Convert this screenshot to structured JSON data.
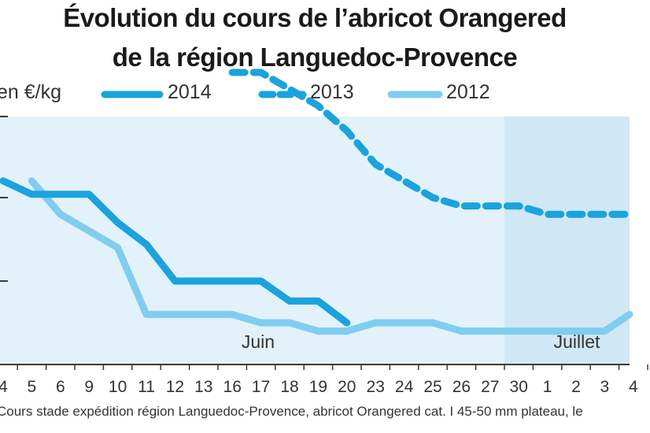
{
  "title_line1": "Évolution du cours de l’abricot Orangered",
  "title_line2": "de la région Languedoc-Provence",
  "caption": "Cours stade expédition région Languedoc-Provence, abricot Orangered cat. I 45-50 mm plateau, le",
  "colors": {
    "background": "#e3f1fa",
    "band": "#d0e7f5",
    "axis": "#3a3a3a",
    "s2014": "#1aa3de",
    "s2013": "#1aa3de",
    "s2012": "#7fcdf0"
  },
  "chart_data": {
    "type": "line",
    "title": "Évolution du cours de l’abricot Orangered de la région Languedoc-Provence",
    "ylabel": "en €/kg",
    "x": [
      "4",
      "5",
      "6",
      "9",
      "10",
      "11",
      "12",
      "13",
      "16",
      "17",
      "18",
      "19",
      "20",
      "23",
      "24",
      "25",
      "26",
      "27",
      "30",
      "1",
      "2",
      "3",
      "4"
    ],
    "xlabel_groups": [
      {
        "label": "Juin",
        "from": 0,
        "to": 17
      },
      {
        "label": "Juillet",
        "from": 18,
        "to": 22
      }
    ],
    "grid": false,
    "legend_position": "top",
    "series": [
      {
        "name": "2014",
        "style": "solid",
        "values": [
          1.6,
          1.52,
          1.52,
          1.52,
          1.35,
          1.22,
          1.0,
          1.0,
          1.0,
          1.0,
          0.88,
          0.88,
          0.75,
          null,
          null,
          null,
          null,
          null,
          null,
          null,
          null,
          null,
          null
        ]
      },
      {
        "name": "2013",
        "style": "dashed",
        "values": [
          null,
          null,
          null,
          null,
          null,
          null,
          null,
          null,
          2.25,
          2.25,
          2.15,
          2.05,
          1.9,
          1.7,
          1.6,
          1.5,
          1.45,
          1.45,
          1.45,
          1.4,
          1.4,
          1.4,
          1.4
        ]
      },
      {
        "name": "2012",
        "style": "solid",
        "values": [
          null,
          1.6,
          1.4,
          1.3,
          1.2,
          0.8,
          0.8,
          0.8,
          0.8,
          0.75,
          0.75,
          0.7,
          0.7,
          0.75,
          0.75,
          0.75,
          0.7,
          0.7,
          0.7,
          0.7,
          0.7,
          0.7,
          0.8
        ]
      }
    ]
  }
}
